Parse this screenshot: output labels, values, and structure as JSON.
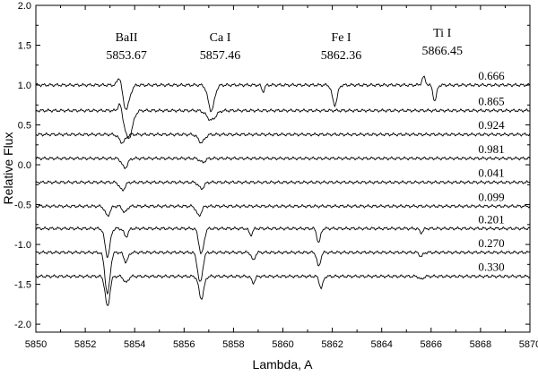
{
  "chart_data": {
    "type": "line",
    "xlabel": "Lambda, A",
    "ylabel": "Relative Flux",
    "xlim": [
      5850,
      5870
    ],
    "ylim": [
      -2.1,
      2.0
    ],
    "x_ticks": [
      5850,
      5852,
      5854,
      5856,
      5858,
      5860,
      5862,
      5864,
      5866,
      5868,
      5870
    ],
    "y_ticks": [
      -2.0,
      -1.5,
      -1.0,
      -0.5,
      0.0,
      0.5,
      1.0,
      1.5,
      2.0
    ],
    "annotations": [
      {
        "name": "BaII",
        "wavelength": "5853.67",
        "x": 5853.67
      },
      {
        "name": "Ca I",
        "wavelength": "5857.46",
        "x": 5857.46
      },
      {
        "name": "Fe I",
        "wavelength": "5862.36",
        "x": 5862.36
      },
      {
        "name": "Ti I",
        "wavelength": "5866.45",
        "x": 5866.45
      }
    ],
    "series": [
      {
        "label": "0.666",
        "continuum": 1.0,
        "features": [
          [
            5853.4,
            0.14,
            0.12
          ],
          [
            5853.65,
            -0.3,
            0.2
          ],
          [
            5857.1,
            -0.32,
            0.18
          ],
          [
            5859.2,
            -0.08,
            0.08
          ],
          [
            5862.1,
            -0.25,
            0.14
          ],
          [
            5865.7,
            0.1,
            0.1
          ],
          [
            5866.15,
            -0.2,
            0.1
          ]
        ]
      },
      {
        "label": "0.865",
        "continuum": 0.68,
        "features": [
          [
            5853.4,
            0.1,
            0.1
          ],
          [
            5853.75,
            -0.35,
            0.22
          ],
          [
            5857.1,
            -0.12,
            0.25
          ]
        ]
      },
      {
        "label": "0.924",
        "continuum": 0.38,
        "features": [
          [
            5853.5,
            -0.1,
            0.18
          ],
          [
            5856.7,
            -0.1,
            0.18
          ]
        ]
      },
      {
        "label": "0.981",
        "continuum": 0.08,
        "features": [
          [
            5853.6,
            -0.12,
            0.16
          ],
          [
            5856.75,
            -0.05,
            0.15
          ]
        ]
      },
      {
        "label": "0.041",
        "continuum": -0.22,
        "features": [
          [
            5853.5,
            -0.1,
            0.15
          ],
          [
            5856.7,
            -0.08,
            0.15
          ]
        ]
      },
      {
        "label": "0.099",
        "continuum": -0.52,
        "features": [
          [
            5852.9,
            -0.12,
            0.14
          ],
          [
            5853.6,
            -0.08,
            0.12
          ],
          [
            5856.6,
            -0.12,
            0.14
          ]
        ]
      },
      {
        "label": "0.201",
        "continuum": -0.8,
        "features": [
          [
            5852.9,
            -0.35,
            0.14
          ],
          [
            5853.65,
            -0.1,
            0.12
          ],
          [
            5856.7,
            -0.32,
            0.14
          ],
          [
            5858.7,
            -0.08,
            0.1
          ],
          [
            5861.45,
            -0.18,
            0.1
          ],
          [
            5865.6,
            -0.05,
            0.1
          ]
        ]
      },
      {
        "label": "0.270",
        "continuum": -1.1,
        "features": [
          [
            5852.9,
            -0.52,
            0.14
          ],
          [
            5853.65,
            -0.12,
            0.12
          ],
          [
            5856.65,
            -0.38,
            0.14
          ],
          [
            5858.8,
            -0.1,
            0.1
          ],
          [
            5861.45,
            -0.18,
            0.1
          ],
          [
            5865.6,
            -0.05,
            0.1
          ]
        ]
      },
      {
        "label": "0.330",
        "continuum": -1.4,
        "features": [
          [
            5852.9,
            -0.38,
            0.13
          ],
          [
            5853.65,
            -0.08,
            0.12
          ],
          [
            5856.7,
            -0.28,
            0.14
          ],
          [
            5858.8,
            -0.08,
            0.1
          ],
          [
            5861.55,
            -0.15,
            0.1
          ],
          [
            5865.6,
            -0.04,
            0.1
          ]
        ]
      }
    ]
  }
}
